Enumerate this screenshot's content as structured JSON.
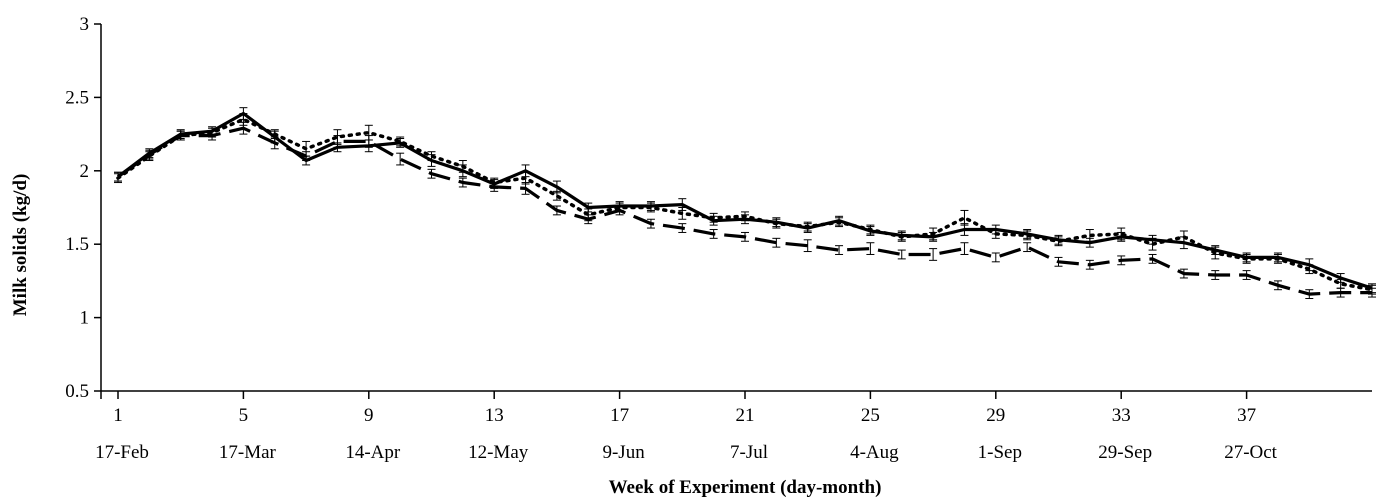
{
  "chart_data": {
    "type": "line",
    "xlabel": "Week of Experiment (day-month)",
    "ylabel": "Milk solids (kg/d)",
    "ylim": [
      0.5,
      3
    ],
    "y_ticks": [
      "0.5",
      "1",
      "1.5",
      "2",
      "2.5",
      "3"
    ],
    "x_ticks_week": [
      "1",
      "5",
      "9",
      "13",
      "17",
      "21",
      "25",
      "29",
      "33",
      "37"
    ],
    "x_ticks_date": [
      "17-Feb",
      "17-Mar",
      "14-Apr",
      "12-May",
      "9-Jun",
      "7-Jul",
      "4-Aug",
      "1-Sep",
      "29-Sep",
      "27-Oct"
    ],
    "x": [
      1,
      2,
      3,
      4,
      5,
      6,
      7,
      8,
      9,
      10,
      11,
      12,
      13,
      14,
      15,
      16,
      17,
      18,
      19,
      20,
      21,
      22,
      23,
      24,
      25,
      26,
      27,
      28,
      29,
      30,
      31,
      32,
      33,
      34,
      35,
      36,
      37,
      38,
      39,
      40,
      41
    ],
    "grid": false,
    "legend": "none",
    "series": [
      {
        "style": "solid",
        "values": [
          1.96,
          2.12,
          2.25,
          2.27,
          2.39,
          2.23,
          2.07,
          2.16,
          2.17,
          2.19,
          2.07,
          2.0,
          1.91,
          2.0,
          1.89,
          1.75,
          1.76,
          1.76,
          1.77,
          1.66,
          1.67,
          1.65,
          1.61,
          1.66,
          1.59,
          1.56,
          1.55,
          1.6,
          1.6,
          1.57,
          1.53,
          1.51,
          1.55,
          1.53,
          1.51,
          1.46,
          1.41,
          1.41,
          1.36,
          1.27,
          1.2
        ],
        "errors": [
          0.03,
          0.03,
          0.03,
          0.03,
          0.04,
          0.04,
          0.03,
          0.03,
          0.04,
          0.03,
          0.04,
          0.04,
          0.03,
          0.04,
          0.04,
          0.03,
          0.03,
          0.03,
          0.04,
          0.03,
          0.03,
          0.03,
          0.03,
          0.03,
          0.03,
          0.03,
          0.03,
          0.04,
          0.03,
          0.03,
          0.03,
          0.03,
          0.03,
          0.03,
          0.04,
          0.03,
          0.03,
          0.03,
          0.04,
          0.03,
          0.03
        ]
      },
      {
        "style": "dotted",
        "values": [
          1.95,
          2.1,
          2.24,
          2.26,
          2.35,
          2.25,
          2.15,
          2.23,
          2.26,
          2.2,
          2.1,
          2.03,
          1.92,
          1.95,
          1.83,
          1.7,
          1.75,
          1.75,
          1.71,
          1.68,
          1.69,
          1.64,
          1.62,
          1.65,
          1.6,
          1.55,
          1.57,
          1.68,
          1.57,
          1.56,
          1.52,
          1.56,
          1.57,
          1.5,
          1.55,
          1.44,
          1.4,
          1.4,
          1.33,
          1.23,
          1.19
        ],
        "errors": [
          0.03,
          0.03,
          0.03,
          0.03,
          0.04,
          0.03,
          0.05,
          0.05,
          0.05,
          0.03,
          0.03,
          0.04,
          0.03,
          0.04,
          0.03,
          0.04,
          0.03,
          0.03,
          0.04,
          0.03,
          0.03,
          0.03,
          0.03,
          0.03,
          0.03,
          0.03,
          0.04,
          0.05,
          0.03,
          0.03,
          0.03,
          0.04,
          0.04,
          0.04,
          0.04,
          0.04,
          0.03,
          0.03,
          0.03,
          0.03,
          0.03
        ]
      },
      {
        "style": "dashed",
        "values": [
          1.96,
          2.11,
          2.24,
          2.24,
          2.29,
          2.19,
          2.1,
          2.2,
          2.2,
          2.08,
          1.98,
          1.92,
          1.89,
          1.88,
          1.73,
          1.67,
          1.73,
          1.64,
          1.61,
          1.57,
          1.55,
          1.51,
          1.49,
          1.46,
          1.47,
          1.43,
          1.43,
          1.47,
          1.41,
          1.48,
          1.38,
          1.36,
          1.39,
          1.4,
          1.3,
          1.29,
          1.29,
          1.22,
          1.16,
          1.17,
          1.17
        ],
        "errors": [
          0.03,
          0.03,
          0.03,
          0.03,
          0.04,
          0.04,
          0.03,
          0.04,
          0.04,
          0.04,
          0.03,
          0.03,
          0.03,
          0.04,
          0.03,
          0.03,
          0.03,
          0.03,
          0.03,
          0.03,
          0.03,
          0.03,
          0.04,
          0.03,
          0.04,
          0.03,
          0.04,
          0.04,
          0.03,
          0.03,
          0.03,
          0.03,
          0.03,
          0.03,
          0.03,
          0.03,
          0.03,
          0.03,
          0.03,
          0.03,
          0.03
        ]
      }
    ]
  }
}
